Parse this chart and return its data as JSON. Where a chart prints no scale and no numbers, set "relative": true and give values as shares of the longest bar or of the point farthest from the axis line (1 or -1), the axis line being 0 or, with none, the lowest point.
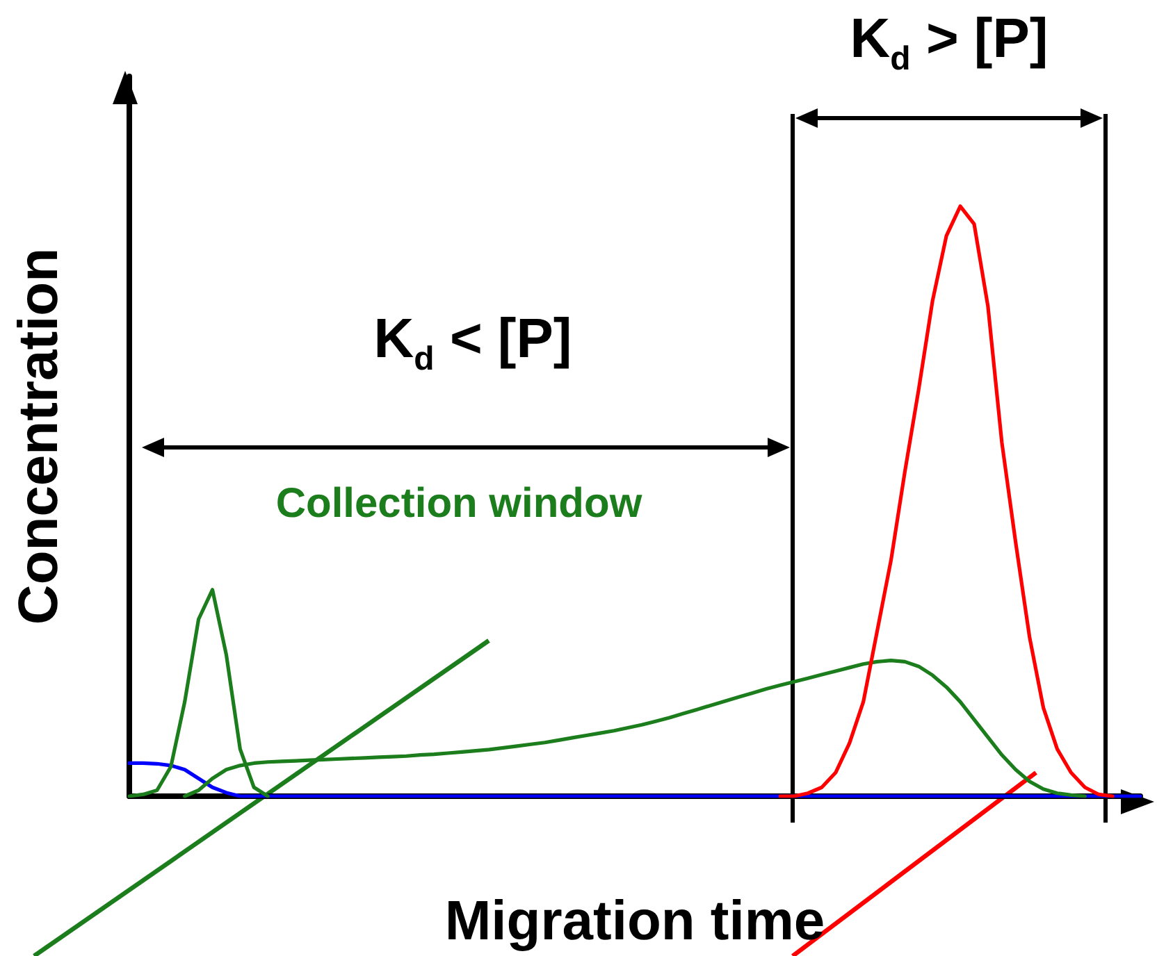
{
  "chart_data": {
    "type": "line",
    "relative": true,
    "marker": "none",
    "xlabel": "Migration time",
    "ylabel": "Concentration",
    "annotations": [
      "K$_{d}$ > [P]",
      "K$_{d}$ < [P]",
      "Collection window"
    ],
    "categories": [
      null,
      null,
      null,
      null,
      null,
      null,
      null,
      null,
      null,
      null,
      null,
      null,
      null,
      null,
      null,
      null,
      null,
      null,
      null,
      null,
      null,
      null,
      null,
      null,
      null,
      null,
      null,
      null,
      null,
      null,
      null,
      null,
      null,
      null,
      null,
      null,
      null,
      null,
      null,
      null,
      null,
      null,
      null,
      null,
      null,
      null,
      null,
      null,
      null,
      null,
      null,
      null,
      null,
      null,
      null,
      null,
      null,
      null,
      null,
      null,
      null,
      null,
      null,
      null,
      null,
      null,
      null,
      null,
      null,
      null,
      null,
      null,
      null,
      null
    ],
    "series": [
      {
        "color": "#0000ff",
        "values": [
          0.056,
          0.056,
          0.055,
          0.052,
          0.045,
          0.03,
          0.015,
          0.006,
          0,
          0,
          0,
          0,
          0,
          0,
          0,
          0,
          0,
          0,
          0,
          0,
          0,
          0,
          0,
          0,
          0,
          0,
          0,
          0,
          0,
          0,
          0,
          0,
          0,
          0,
          0,
          0,
          0,
          0,
          0,
          0,
          0,
          0,
          0,
          0,
          0,
          0,
          0,
          0,
          0,
          0,
          0,
          0,
          0,
          0,
          0,
          0,
          0,
          0,
          0,
          0,
          0,
          0,
          0,
          0,
          0,
          0,
          0,
          0,
          0,
          0,
          0,
          0,
          0,
          0
        ]
      },
      {
        "color": "#1b7d1b",
        "values": [
          0,
          0.003,
          0.01,
          0.05,
          0.16,
          0.3,
          0.35,
          0.24,
          0.08,
          0.015,
          0,
          null,
          null,
          null,
          null,
          null,
          null,
          null,
          null,
          null,
          null,
          null,
          null,
          null,
          null,
          null,
          null,
          null,
          null,
          null,
          null,
          null,
          null,
          null,
          null,
          null,
          null,
          null,
          null,
          null,
          null,
          null,
          null,
          null,
          null,
          null,
          null,
          null,
          null,
          null,
          null,
          null,
          null,
          null,
          null,
          null,
          null,
          null,
          null,
          null,
          null,
          null,
          null,
          null,
          null,
          null,
          null,
          null,
          null,
          null,
          null,
          null,
          null,
          null
        ]
      },
      {
        "color": "#1b7d1b",
        "values": [
          null,
          null,
          null,
          null,
          0,
          0.01,
          0.03,
          0.045,
          0.052,
          0.056,
          0.058,
          0.059,
          0.06,
          0.061,
          0.062,
          0.063,
          0.064,
          0.065,
          0.066,
          0.067,
          0.068,
          0.07,
          0.071,
          0.073,
          0.075,
          0.077,
          0.079,
          0.082,
          0.085,
          0.088,
          0.091,
          0.095,
          0.099,
          0.103,
          0.107,
          0.111,
          0.116,
          0.121,
          0.127,
          0.133,
          0.14,
          0.147,
          0.154,
          0.161,
          0.168,
          0.175,
          0.182,
          0.188,
          0.194,
          0.2,
          0.206,
          0.212,
          0.218,
          0.224,
          0.228,
          0.23,
          0.228,
          0.22,
          0.205,
          0.185,
          0.16,
          0.13,
          0.1,
          0.07,
          0.045,
          0.025,
          0.012,
          0.005,
          0.002,
          0,
          null,
          null,
          null,
          null
        ]
      },
      {
        "color": "#ff0000",
        "values": [
          null,
          null,
          null,
          null,
          null,
          null,
          null,
          null,
          null,
          null,
          null,
          null,
          null,
          null,
          null,
          null,
          null,
          null,
          null,
          null,
          null,
          null,
          null,
          null,
          null,
          null,
          null,
          null,
          null,
          null,
          null,
          null,
          null,
          null,
          null,
          null,
          null,
          null,
          null,
          null,
          null,
          null,
          null,
          null,
          null,
          null,
          null,
          0,
          0,
          0.005,
          0.015,
          0.04,
          0.09,
          0.16,
          0.28,
          0.4,
          0.55,
          0.69,
          0.84,
          0.95,
          1,
          0.97,
          0.83,
          0.6,
          0.43,
          0.27,
          0.15,
          0.08,
          0.04,
          0.015,
          0.003,
          0,
          null,
          null
        ]
      }
    ]
  }
}
